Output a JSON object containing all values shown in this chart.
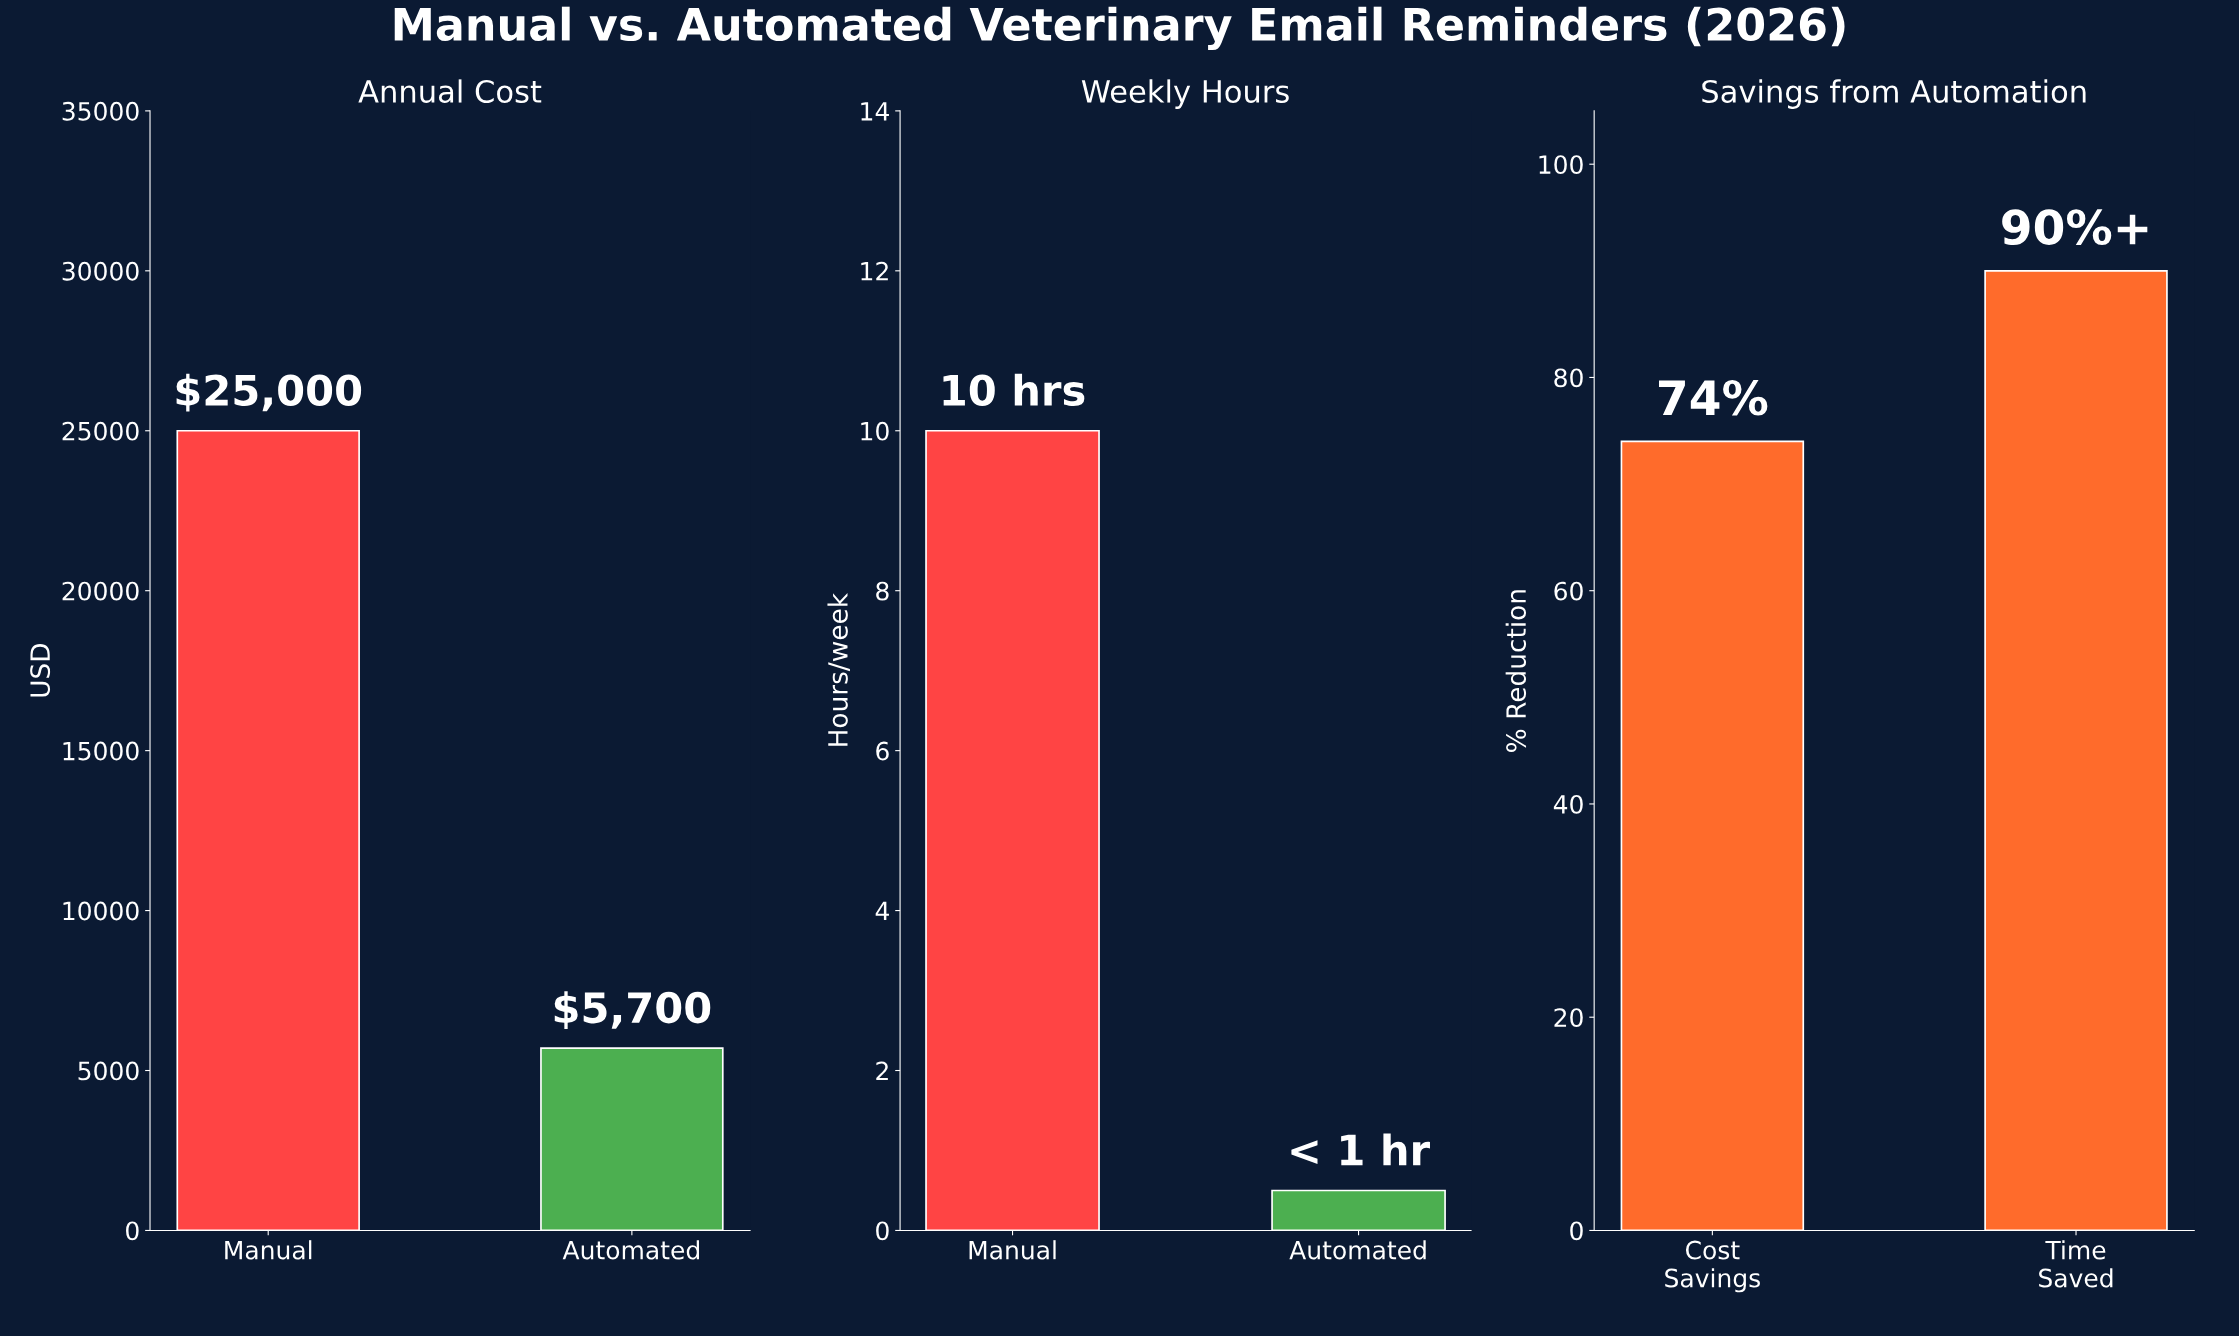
{
  "chart_data": [
    {
      "type": "bar",
      "title": "Annual Cost",
      "ylabel": "USD",
      "annotations": [
        "Manual vs. Automated Veterinary Email Reminders (2026)"
      ],
      "categories": [
        "Manual",
        "Automated"
      ],
      "values": [
        25000,
        5700
      ],
      "colors": [
        "#ff4444",
        "#4caf50"
      ],
      "value_labels": [
        "$25,000",
        "$5,700"
      ],
      "ylim": [
        0,
        35000
      ],
      "yticks": [
        0,
        5000,
        10000,
        15000,
        20000,
        25000,
        30000,
        35000
      ],
      "grid": false,
      "legend": false
    },
    {
      "type": "bar",
      "title": "Weekly Hours",
      "ylabel": "Hours/week",
      "categories": [
        "Manual",
        "Automated"
      ],
      "values": [
        10,
        0.5
      ],
      "colors": [
        "#ff4444",
        "#4caf50"
      ],
      "value_labels": [
        "10 hrs",
        "< 1 hr"
      ],
      "ylim": [
        0,
        14
      ],
      "yticks": [
        0,
        2,
        4,
        6,
        8,
        10,
        12,
        14
      ],
      "grid": false,
      "legend": false
    },
    {
      "type": "bar",
      "title": "Savings from Automation",
      "ylabel": "% Reduction",
      "categories": [
        "Cost\nSavings",
        "Time\nSaved"
      ],
      "values": [
        74,
        90
      ],
      "colors": [
        "#ff6b2b",
        "#ff6b2b"
      ],
      "value_labels": [
        "74%",
        "90%+"
      ],
      "ylim": [
        0,
        105
      ],
      "yticks": [
        0,
        20,
        40,
        60,
        80,
        100
      ],
      "grid": false,
      "legend": false
    }
  ]
}
